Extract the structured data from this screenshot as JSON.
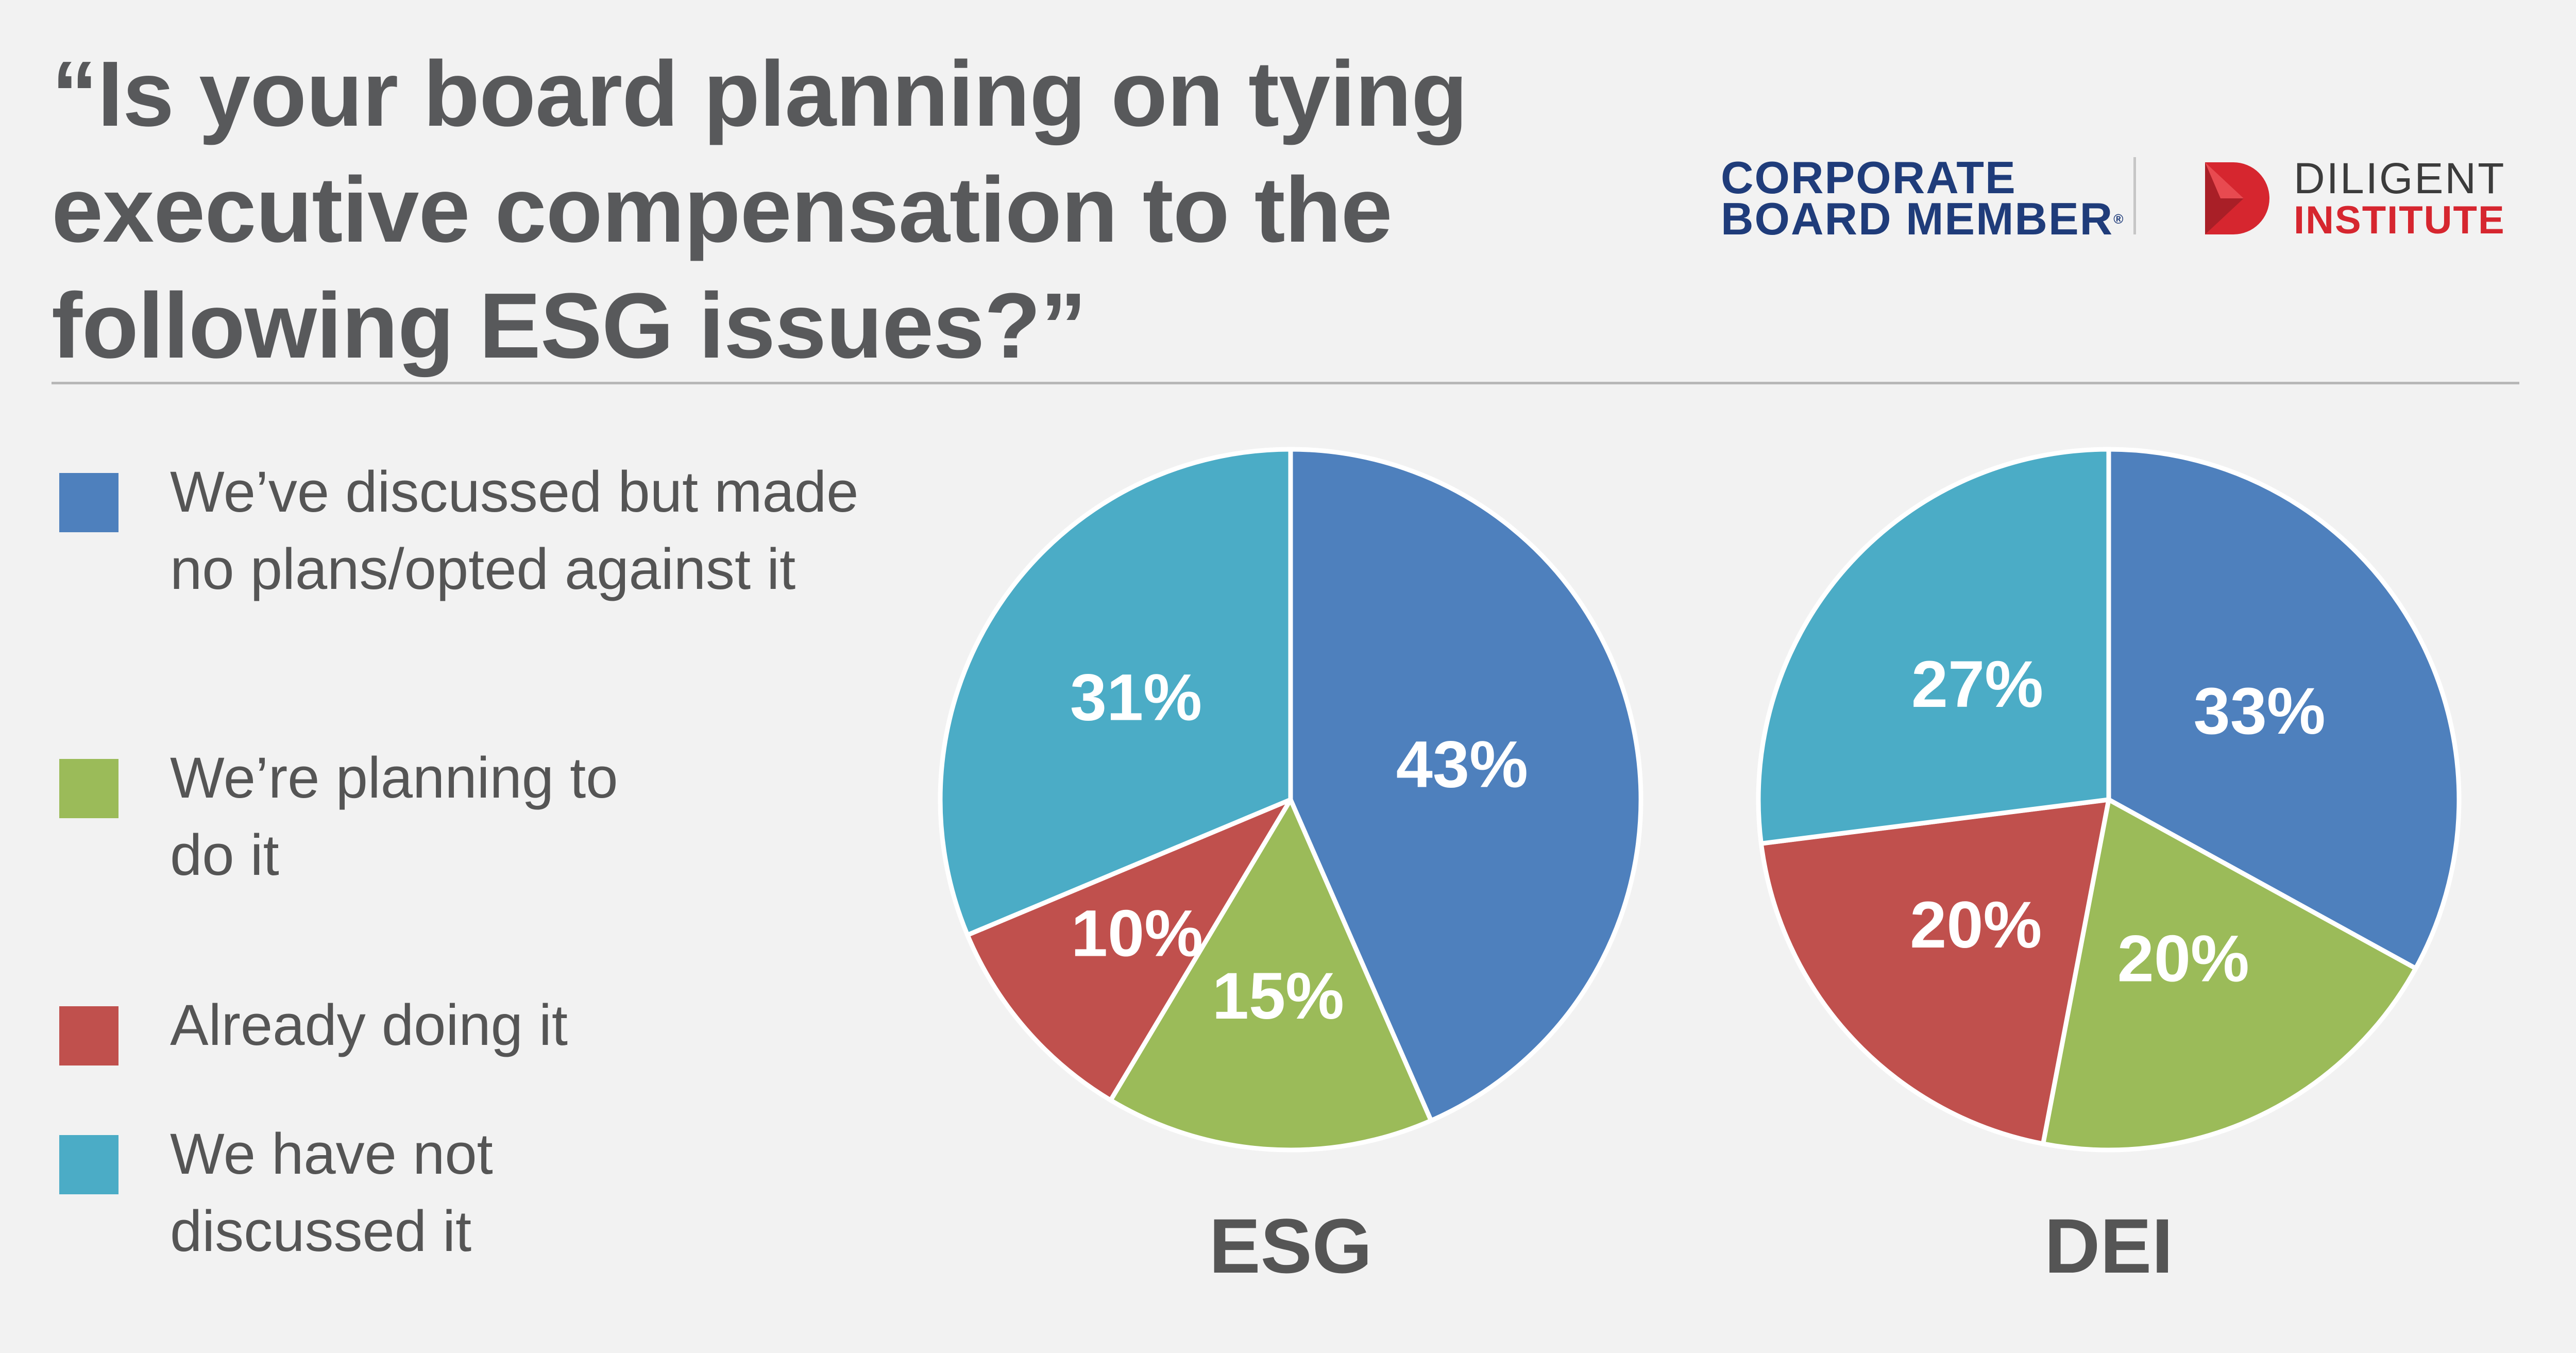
{
  "title": "“Is your board planning on tying executive compensation to the following ESG issues?”",
  "logos": {
    "cbm_line1": "CORPORATE",
    "cbm_line2": "BOARD MEMBER",
    "cbm_mark": "®",
    "diligent_line1": "DILIGENT",
    "diligent_line2": "INSTITUTE",
    "diligent_icon": "diligent-d-logo"
  },
  "legend": [
    {
      "label": "We’ve discussed but made no plans/opted against it",
      "color": "#4e80bd"
    },
    {
      "label": "We’re planning to do it",
      "color": "#9bbb59"
    },
    {
      "label": "Already doing it",
      "color": "#c0504d"
    },
    {
      "label": "We have not discussed it",
      "color": "#4bacc6"
    }
  ],
  "chart_data": [
    {
      "type": "pie",
      "title": "ESG",
      "categories": [
        "We’ve discussed but made no plans/opted against it",
        "We’re planning to do it",
        "Already doing it",
        "We have not discussed it"
      ],
      "values": [
        43,
        15,
        10,
        31
      ],
      "labels": [
        "43%",
        "15%",
        "10%",
        "31%"
      ],
      "colors": [
        "#4e80bd",
        "#9bbb59",
        "#c0504d",
        "#4bacc6"
      ],
      "start": "12 o'clock, clockwise"
    },
    {
      "type": "pie",
      "title": "DEI",
      "categories": [
        "We’ve discussed but made no plans/opted against it",
        "We’re planning to do it",
        "Already doing it",
        "We have not discussed it"
      ],
      "values": [
        33,
        20,
        20,
        27
      ],
      "labels": [
        "33%",
        "20%",
        "20%",
        "27%"
      ],
      "colors": [
        "#4e80bd",
        "#9bbb59",
        "#c0504d",
        "#4bacc6"
      ],
      "start": "12 o'clock, clockwise"
    }
  ]
}
